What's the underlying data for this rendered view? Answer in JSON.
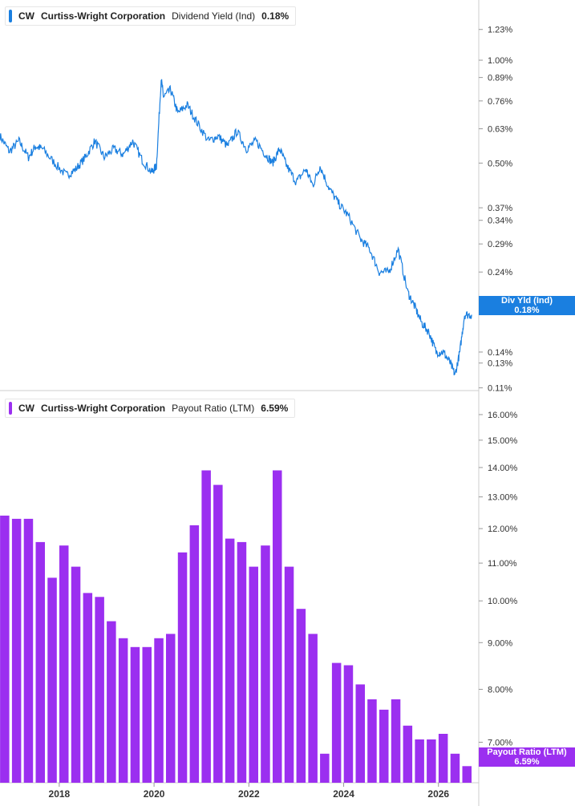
{
  "colors": {
    "yield": "#1a7fe0",
    "payout": "#9b2ff0",
    "grid": "#d9d9d9",
    "axis": "#cccccc"
  },
  "chart_data": [
    {
      "type": "line",
      "ticker": "CW",
      "company": "Curtiss-Wright Corporation",
      "metric": "Dividend Yield (Ind)",
      "current_value": "0.18%",
      "tag_label": "Div Yld (Ind)",
      "tag_value": "0.18%",
      "y_scale": "log",
      "ylim": [
        0.108,
        1.5
      ],
      "xlim": [
        2016.75,
        2026.85
      ],
      "y_ticks": [
        {
          "v": 1.23,
          "label": "1.23%"
        },
        {
          "v": 1.0,
          "label": "1.00%"
        },
        {
          "v": 0.89,
          "label": "0.89%"
        },
        {
          "v": 0.76,
          "label": "0.76%"
        },
        {
          "v": 0.63,
          "label": "0.63%"
        },
        {
          "v": 0.5,
          "label": "0.50%"
        },
        {
          "v": 0.37,
          "label": "0.37%"
        },
        {
          "v": 0.34,
          "label": "0.34%"
        },
        {
          "v": 0.29,
          "label": "0.29%"
        },
        {
          "v": 0.24,
          "label": "0.24%"
        },
        {
          "v": 0.14,
          "label": "0.14%"
        },
        {
          "v": 0.13,
          "label": "0.13%"
        },
        {
          "v": 0.11,
          "label": "0.11%"
        }
      ],
      "x": [
        2016.75,
        2016.95,
        2017.15,
        2017.35,
        2017.5,
        2017.65,
        2017.9,
        2018.15,
        2018.35,
        2018.55,
        2018.75,
        2018.95,
        2019.15,
        2019.35,
        2019.55,
        2019.75,
        2019.95,
        2020.05,
        2020.15,
        2020.2,
        2020.35,
        2020.5,
        2020.7,
        2020.9,
        2021.15,
        2021.35,
        2021.55,
        2021.75,
        2021.95,
        2022.15,
        2022.35,
        2022.5,
        2022.65,
        2022.8,
        2023.0,
        2023.2,
        2023.35,
        2023.5,
        2023.7,
        2023.9,
        2024.1,
        2024.35,
        2024.55,
        2024.75,
        2024.95,
        2025.15,
        2025.35,
        2025.5,
        2025.65,
        2025.8,
        2025.95,
        2026.1,
        2026.25,
        2026.35,
        2026.45,
        2026.55,
        2026.7
      ],
      "values": [
        0.6,
        0.54,
        0.58,
        0.52,
        0.56,
        0.55,
        0.5,
        0.46,
        0.48,
        0.52,
        0.58,
        0.52,
        0.55,
        0.53,
        0.58,
        0.51,
        0.47,
        0.49,
        0.88,
        0.78,
        0.82,
        0.7,
        0.74,
        0.66,
        0.58,
        0.6,
        0.56,
        0.62,
        0.55,
        0.58,
        0.53,
        0.5,
        0.55,
        0.49,
        0.44,
        0.48,
        0.43,
        0.49,
        0.42,
        0.38,
        0.35,
        0.3,
        0.28,
        0.24,
        0.24,
        0.28,
        0.21,
        0.19,
        0.17,
        0.16,
        0.14,
        0.14,
        0.13,
        0.12,
        0.14,
        0.18,
        0.18
      ]
    },
    {
      "type": "bar",
      "ticker": "CW",
      "company": "Curtiss-Wright Corporation",
      "metric": "Payout Ratio (LTM)",
      "current_value": "6.59%",
      "tag_label": "Payout Ratio (LTM)",
      "tag_value": "6.59%",
      "y_scale": "log",
      "ylim": [
        6.32,
        17.0
      ],
      "xlim": [
        2016.75,
        2026.85
      ],
      "y_ticks": [
        {
          "v": 16.0,
          "label": "16.00%"
        },
        {
          "v": 15.0,
          "label": "15.00%"
        },
        {
          "v": 14.0,
          "label": "14.00%"
        },
        {
          "v": 13.0,
          "label": "13.00%"
        },
        {
          "v": 12.0,
          "label": "12.00%"
        },
        {
          "v": 11.0,
          "label": "11.00%"
        },
        {
          "v": 10.0,
          "label": "10.00%"
        },
        {
          "v": 9.0,
          "label": "9.00%"
        },
        {
          "v": 8.0,
          "label": "8.00%"
        },
        {
          "v": 7.0,
          "label": "7.00%"
        }
      ],
      "x_ticks": [
        {
          "v": 2018,
          "label": "2018"
        },
        {
          "v": 2020,
          "label": "2020"
        },
        {
          "v": 2022,
          "label": "2022"
        },
        {
          "v": 2024,
          "label": "2024"
        },
        {
          "v": 2026,
          "label": "2026"
        }
      ],
      "x": [
        2016.85,
        2017.1,
        2017.35,
        2017.6,
        2017.85,
        2018.1,
        2018.35,
        2018.6,
        2018.85,
        2019.1,
        2019.35,
        2019.6,
        2019.85,
        2020.1,
        2020.35,
        2020.6,
        2020.85,
        2021.1,
        2021.35,
        2021.6,
        2021.85,
        2022.1,
        2022.35,
        2022.6,
        2022.85,
        2023.1,
        2023.35,
        2023.6,
        2023.85,
        2024.1,
        2024.35,
        2024.6,
        2024.85,
        2025.1,
        2025.35,
        2025.6,
        2025.85,
        2026.1,
        2026.35,
        2026.6
      ],
      "values": [
        12.4,
        12.3,
        12.3,
        11.6,
        10.6,
        11.5,
        10.9,
        10.2,
        10.1,
        9.5,
        9.1,
        8.9,
        8.9,
        9.1,
        9.2,
        11.3,
        12.1,
        13.9,
        13.4,
        11.7,
        11.6,
        10.9,
        11.5,
        13.9,
        10.9,
        9.8,
        9.2,
        6.8,
        8.55,
        8.5,
        8.1,
        7.8,
        7.6,
        7.8,
        7.3,
        7.05,
        7.05,
        7.15,
        6.8,
        6.59
      ]
    }
  ]
}
